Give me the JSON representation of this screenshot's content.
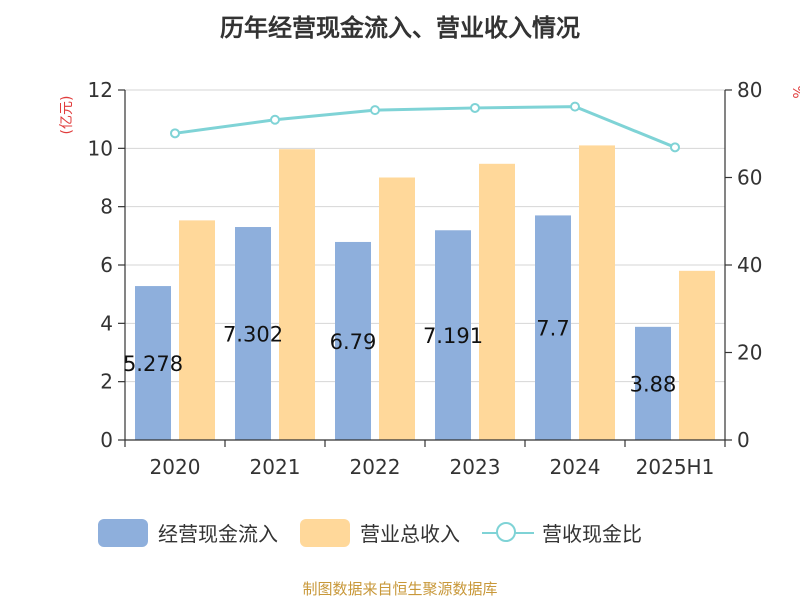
{
  "title": "历年经营现金流入、营业收入情况",
  "source": "制图数据来自恒生聚源数据库",
  "colors": {
    "cash_inflow": "#8eafdc",
    "revenue": "#ffd89a",
    "ratio": "#7fd3d6",
    "left_unit": "#e03c3c",
    "source": "#c8983a"
  },
  "chart_data": {
    "type": "bar",
    "categories": [
      "2020",
      "2021",
      "2022",
      "2023",
      "2024",
      "2025H1"
    ],
    "y_left": {
      "unit_label": "(亿元)",
      "ylim": [
        0,
        12
      ],
      "ticks": [
        0,
        2,
        4,
        6,
        8,
        10,
        12
      ]
    },
    "y_right": {
      "unit_label": "%",
      "ylim": [
        0,
        80
      ],
      "ticks": [
        0,
        20,
        40,
        60,
        80
      ]
    },
    "grid": true,
    "legend_position": "bottom",
    "series": [
      {
        "name": "经营现金流入",
        "type": "bar",
        "axis": "left",
        "values": [
          5.278,
          7.302,
          6.79,
          7.191,
          7.7,
          3.88
        ],
        "labels": [
          "5.278",
          "7.302",
          "6.79",
          "7.191",
          "7.7",
          "3.88"
        ]
      },
      {
        "name": "营业总收入",
        "type": "bar",
        "axis": "left",
        "values": [
          7.53,
          9.97,
          9.0,
          9.47,
          10.1,
          5.8
        ]
      },
      {
        "name": "营收现金比",
        "type": "line",
        "axis": "right",
        "values": [
          70.1,
          73.2,
          75.4,
          75.9,
          76.2,
          66.9
        ]
      }
    ]
  },
  "legend": {
    "cash_inflow": "经营现金流入",
    "revenue": "营业总收入",
    "ratio": "营收现金比"
  }
}
